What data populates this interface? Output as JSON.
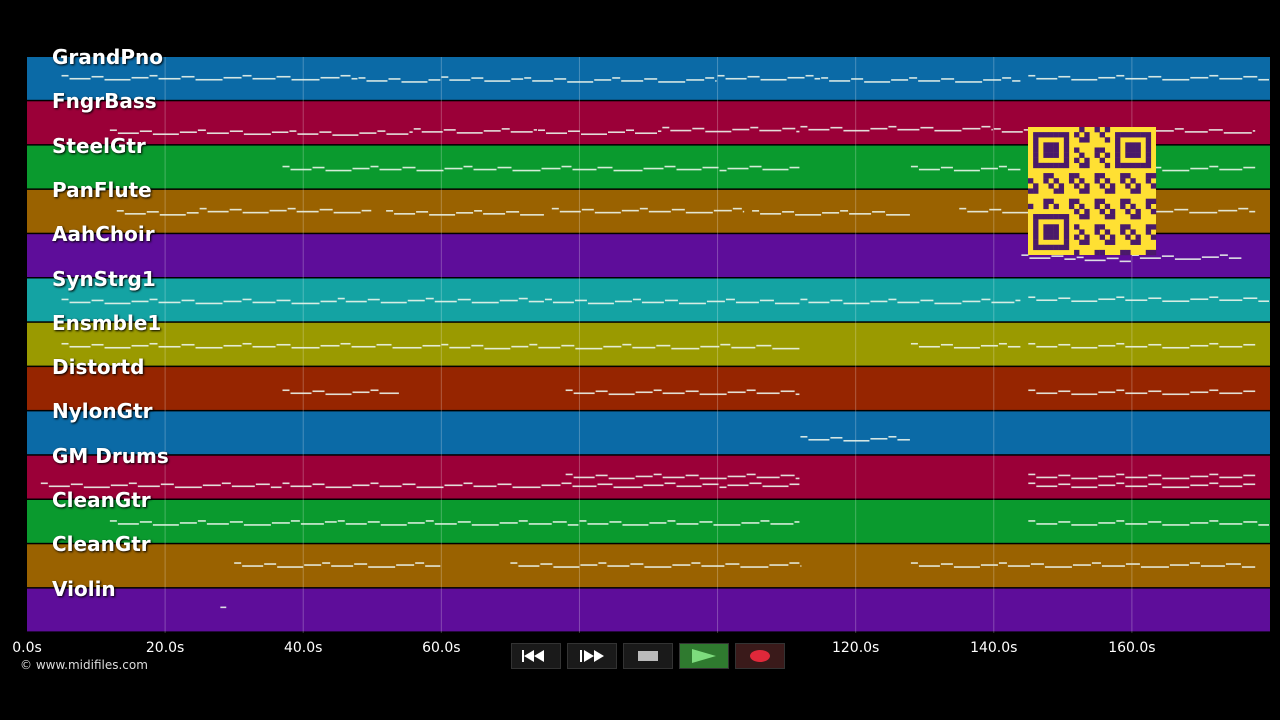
{
  "tracks": [
    {
      "name": "GrandPno",
      "color": "#0b6aa6",
      "notes": [
        [
          5,
          48,
          0.45
        ],
        [
          48,
          60,
          0.5
        ],
        [
          60,
          72,
          0.48
        ],
        [
          72,
          100,
          0.5
        ],
        [
          100,
          115,
          0.45
        ],
        [
          115,
          144,
          0.5
        ],
        [
          145,
          180,
          0.45
        ]
      ]
    },
    {
      "name": "FngrBass",
      "color": "#9b0038",
      "notes": [
        [
          12,
          38,
          0.68
        ],
        [
          38,
          56,
          0.7
        ],
        [
          56,
          74,
          0.65
        ],
        [
          74,
          92,
          0.68
        ],
        [
          92,
          112,
          0.62
        ],
        [
          112,
          140,
          0.6
        ],
        [
          140,
          178,
          0.65
        ]
      ]
    },
    {
      "name": "SteelGtr",
      "color": "#0a9a2e",
      "notes": [
        [
          37,
          112,
          0.5
        ],
        [
          128,
          144,
          0.5
        ],
        [
          145,
          178,
          0.5
        ]
      ]
    },
    {
      "name": "PanFlute",
      "color": "#9a6200",
      "notes": [
        [
          13,
          25,
          0.5
        ],
        [
          25,
          50,
          0.45
        ],
        [
          52,
          75,
          0.5
        ],
        [
          76,
          104,
          0.45
        ],
        [
          105,
          128,
          0.5
        ],
        [
          135,
          178,
          0.45
        ]
      ]
    },
    {
      "name": "AahChoir",
      "color": "#5e0d9a",
      "notes": [
        [
          144,
          152,
          0.5
        ],
        [
          152,
          160,
          0.55
        ],
        [
          160,
          176,
          0.5
        ]
      ]
    },
    {
      "name": "SynStrg1",
      "color": "#14a3a3",
      "notes": [
        [
          5,
          45,
          0.5
        ],
        [
          45,
          75,
          0.48
        ],
        [
          75,
          112,
          0.5
        ],
        [
          112,
          144,
          0.5
        ],
        [
          145,
          180,
          0.45
        ]
      ]
    },
    {
      "name": "Ensmble1",
      "color": "#9a9a00",
      "notes": [
        [
          5,
          60,
          0.5
        ],
        [
          60,
          112,
          0.52
        ],
        [
          128,
          144,
          0.5
        ],
        [
          145,
          178,
          0.5
        ]
      ]
    },
    {
      "name": "Distortd",
      "color": "#962500",
      "notes": [
        [
          37,
          54,
          0.55
        ],
        [
          78,
          112,
          0.55
        ],
        [
          145,
          178,
          0.55
        ]
      ]
    },
    {
      "name": "NylonGtr",
      "color": "#0b6aa6",
      "notes": [
        [
          112,
          128,
          0.6
        ]
      ]
    },
    {
      "name": "GM Drums",
      "color": "#9b0038",
      "notes": [
        [
          2,
          37,
          0.65
        ],
        [
          37,
          112,
          0.65
        ],
        [
          78,
          112,
          0.45
        ],
        [
          145,
          178,
          0.45
        ],
        [
          145,
          178,
          0.65
        ]
      ]
    },
    {
      "name": "CleanGtr",
      "color": "#0a9a2e",
      "notes": [
        [
          12,
          45,
          0.5
        ],
        [
          45,
          80,
          0.5
        ],
        [
          80,
          112,
          0.5
        ],
        [
          145,
          180,
          0.5
        ]
      ]
    },
    {
      "name": "CleanGtr",
      "color": "#9a6200",
      "notes": [
        [
          30,
          60,
          0.45
        ],
        [
          70,
          112,
          0.45
        ],
        [
          128,
          178,
          0.45
        ]
      ]
    },
    {
      "name": "Violin",
      "color": "#5e0d9a",
      "notes": [
        [
          28,
          29,
          0.45
        ]
      ]
    }
  ],
  "timeline": {
    "min_sec": 0,
    "max_sec": 180,
    "ticks": [
      {
        "sec": 0,
        "label": "0.0s"
      },
      {
        "sec": 20,
        "label": "20.0s"
      },
      {
        "sec": 40,
        "label": "40.0s"
      },
      {
        "sec": 60,
        "label": "60.0s"
      },
      {
        "sec": 120,
        "label": "120.0s"
      },
      {
        "sec": 140,
        "label": "140.0s"
      },
      {
        "sec": 160,
        "label": "160.0s"
      }
    ],
    "grid_secs": [
      20,
      40,
      60,
      80,
      100,
      120,
      140,
      160
    ]
  },
  "copyright": "© www.midifiles.com",
  "transport": {
    "rewind_icon": "rewind-icon",
    "fast_forward_icon": "fast-forward-icon",
    "stop_icon": "stop-icon",
    "play_icon": "play-icon",
    "record_icon": "record-icon"
  },
  "qr_code": {
    "icon": "qr-code-icon",
    "color": "#ffe033"
  }
}
